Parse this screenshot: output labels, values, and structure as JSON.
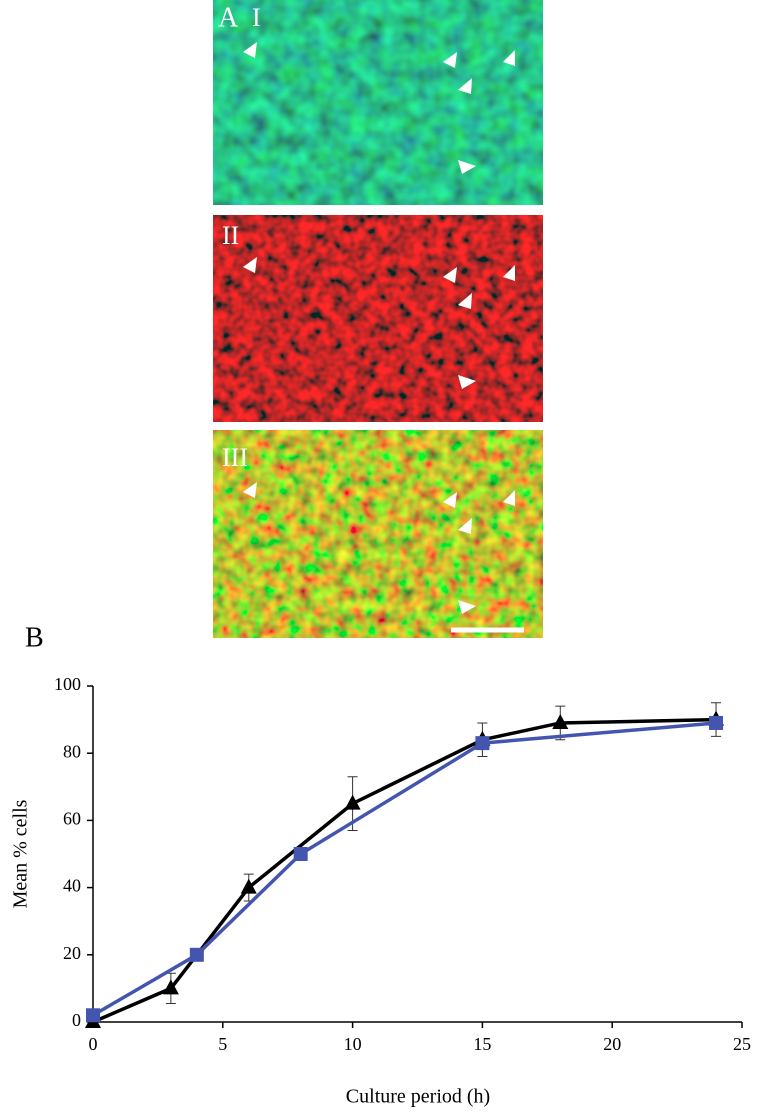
{
  "figure_labels": [
    "A",
    "B"
  ],
  "panels": [
    "I",
    "II",
    "III"
  ],
  "chart_data": {
    "type": "line",
    "xlabel": "Culture period (h)",
    "ylabel": "Mean % cells",
    "xlim": [
      0,
      25
    ],
    "xticks": [
      0,
      5,
      10,
      15,
      20,
      25
    ],
    "ylim": [
      0,
      100
    ],
    "yticks": [
      0,
      20,
      40,
      60,
      80,
      100
    ],
    "series": [
      {
        "color": "#000000",
        "marker": "triangle",
        "x": [
          0,
          3,
          6,
          10,
          15,
          18,
          24
        ],
        "values": [
          0,
          10,
          40,
          65,
          84,
          89,
          90
        ],
        "errors": [
          0,
          4.5,
          4,
          8,
          5,
          5,
          5
        ]
      },
      {
        "color": "#4455b0",
        "marker": "square",
        "x": [
          0,
          4,
          8,
          15,
          24
        ],
        "values": [
          2,
          20,
          50,
          83,
          89
        ]
      }
    ]
  }
}
